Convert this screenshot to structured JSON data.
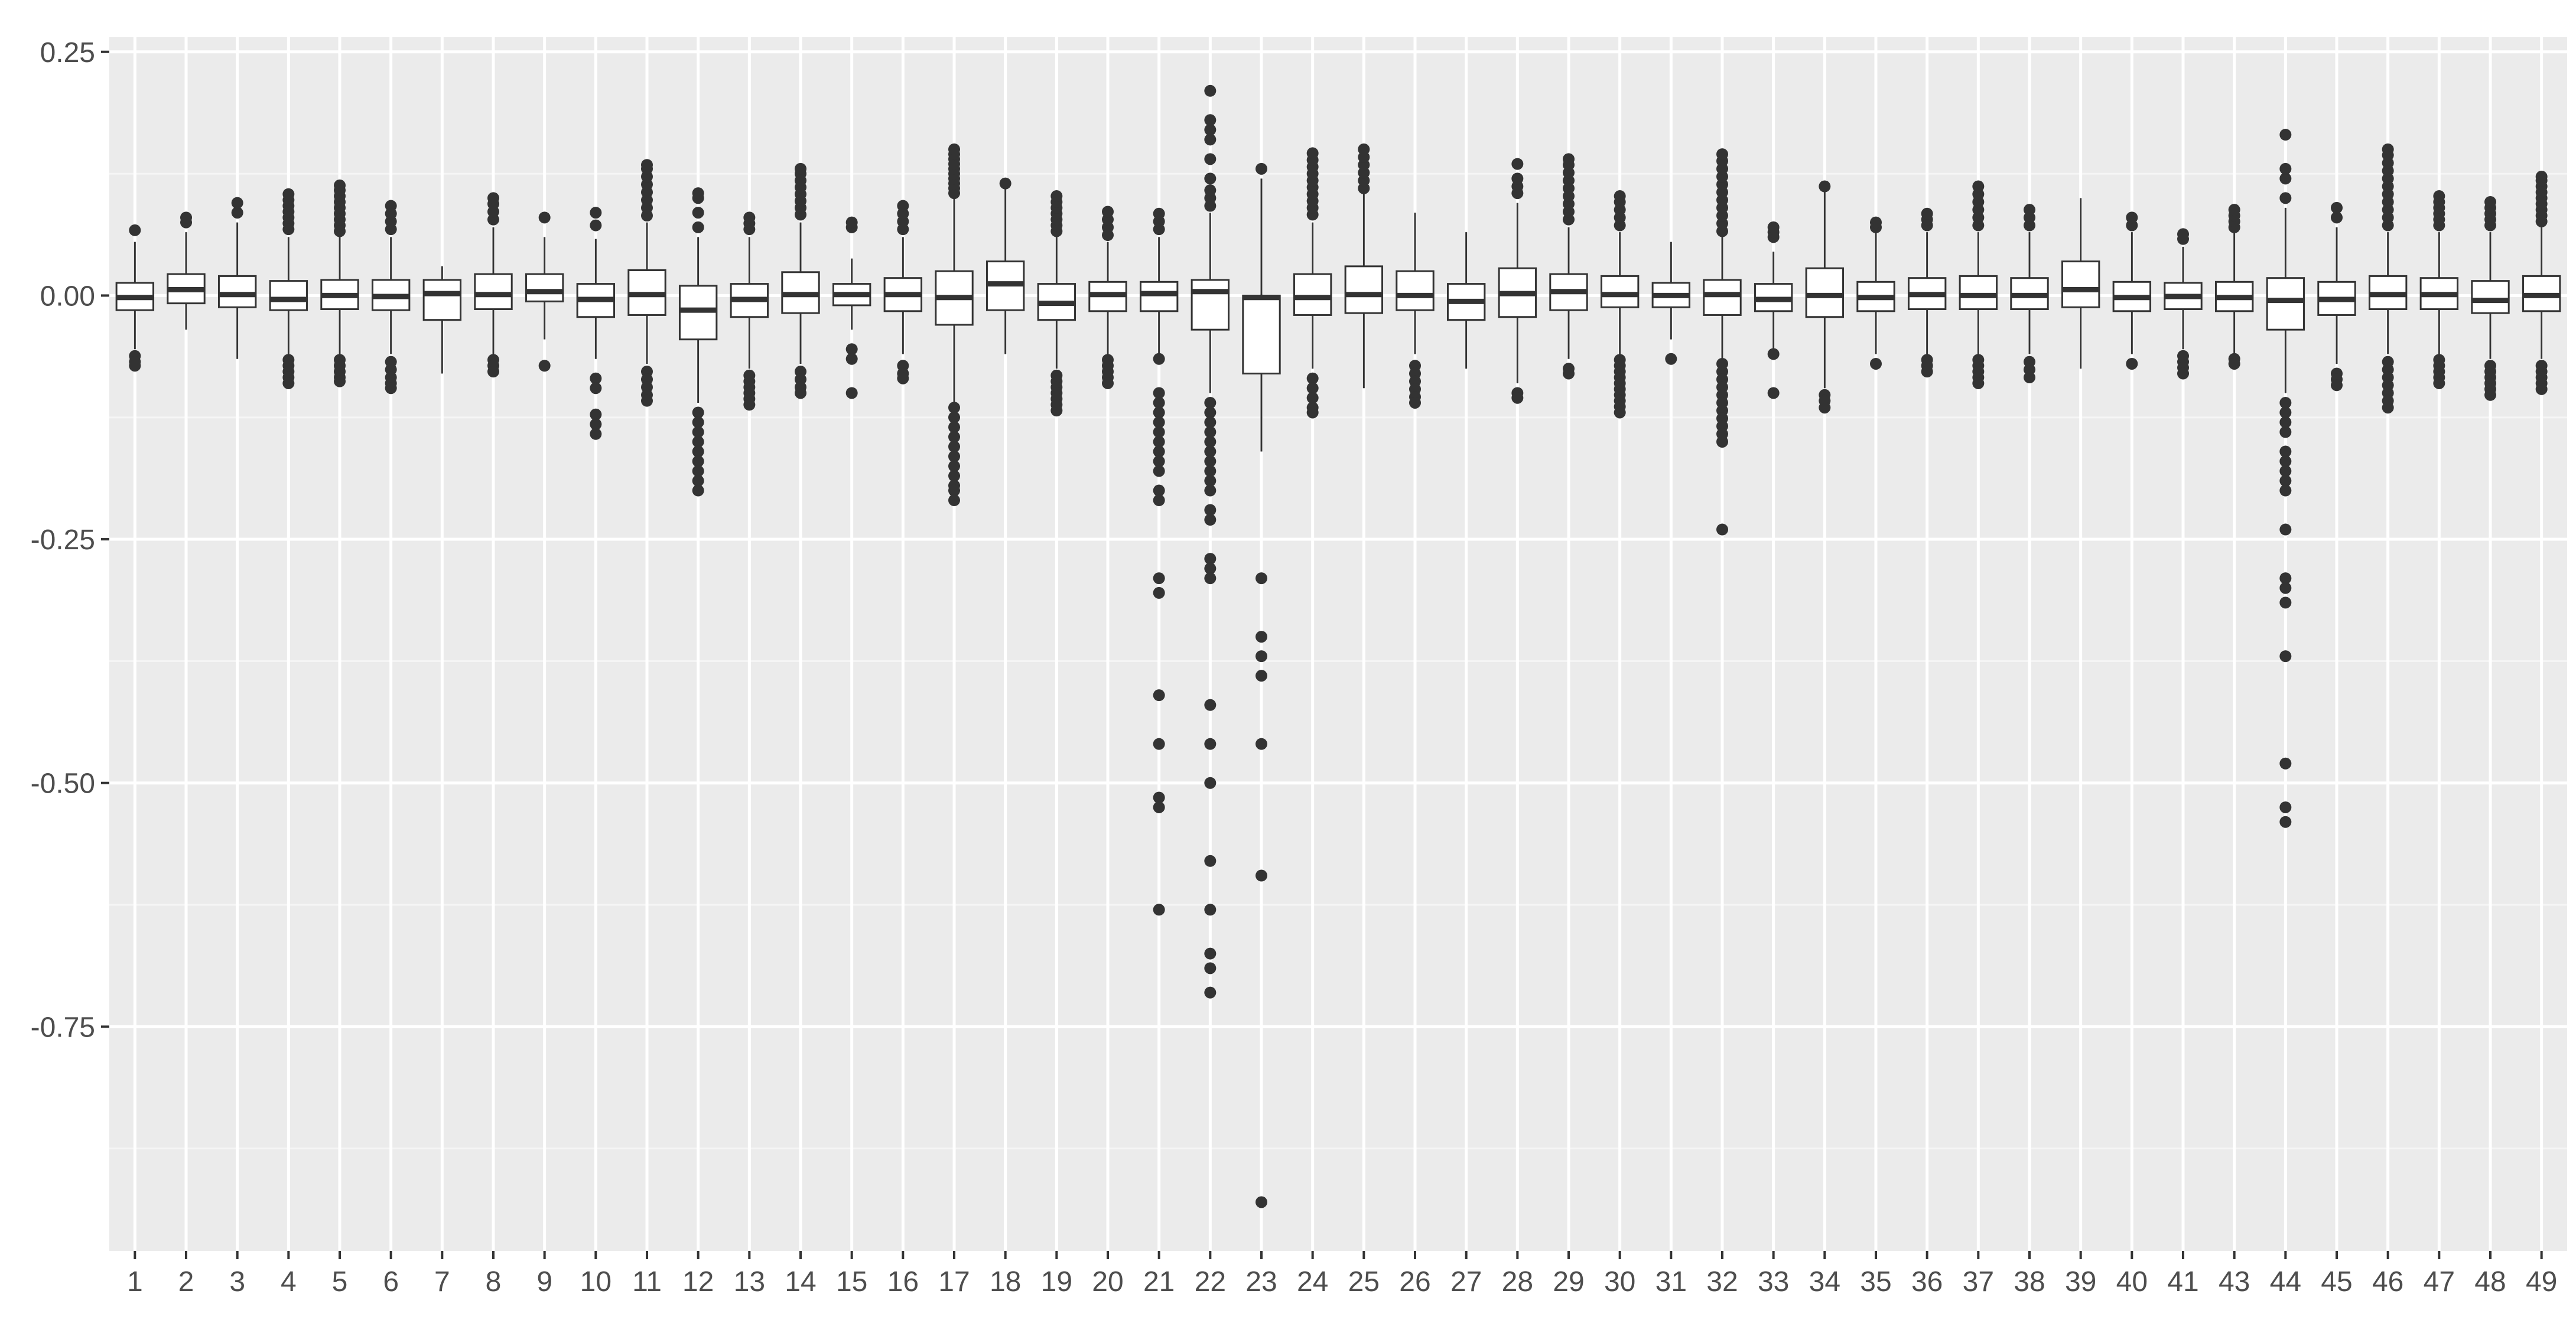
{
  "chart_data": {
    "type": "boxplot",
    "title": "",
    "xlabel": "",
    "ylabel": "",
    "ylim": [
      -0.98,
      0.265
    ],
    "grid": true,
    "legend": "none",
    "colors": {
      "panel": "#ebebeb",
      "grid_major": "#ffffff",
      "grid_minor": "#f5f5f5",
      "box_fill": "#ffffff",
      "box_line": "#333333",
      "outlier": "#333333",
      "tick_text": "#4d4d4d"
    },
    "y_ticks": [
      {
        "value": 0.25,
        "label": "0.25"
      },
      {
        "value": 0.0,
        "label": "0.00"
      },
      {
        "value": -0.25,
        "label": "-0.25"
      },
      {
        "value": -0.5,
        "label": "-0.50"
      },
      {
        "value": -0.75,
        "label": "-0.75"
      }
    ],
    "categories": [
      "1",
      "2",
      "3",
      "4",
      "5",
      "6",
      "7",
      "8",
      "9",
      "10",
      "11",
      "12",
      "13",
      "14",
      "15",
      "16",
      "17",
      "18",
      "19",
      "20",
      "21",
      "22",
      "23",
      "24",
      "25",
      "26",
      "27",
      "28",
      "29",
      "30",
      "31",
      "32",
      "33",
      "34",
      "35",
      "36",
      "37",
      "38",
      "39",
      "40",
      "41",
      "43",
      "44",
      "45",
      "46",
      "47",
      "48",
      "49"
    ],
    "boxes": [
      {
        "q1": -0.015,
        "median": -0.002,
        "q3": 0.013,
        "whisker_low": -0.055,
        "whisker_high": 0.055,
        "outliers": [
          0.067,
          -0.062,
          -0.068,
          -0.072
        ]
      },
      {
        "q1": -0.008,
        "median": 0.006,
        "q3": 0.022,
        "whisker_low": -0.035,
        "whisker_high": 0.065,
        "outliers": [
          0.075,
          0.08
        ]
      },
      {
        "q1": -0.012,
        "median": 0.001,
        "q3": 0.02,
        "whisker_low": -0.065,
        "whisker_high": 0.075,
        "outliers": [
          0.085,
          0.095
        ]
      },
      {
        "q1": -0.015,
        "median": -0.004,
        "q3": 0.015,
        "whisker_low": -0.06,
        "whisker_high": 0.06,
        "outliers": [
          0.068,
          0.074,
          0.08,
          0.086,
          0.092,
          0.098,
          0.104,
          -0.066,
          -0.072,
          -0.078,
          -0.084,
          -0.09
        ]
      },
      {
        "q1": -0.014,
        "median": 0.0,
        "q3": 0.016,
        "whisker_low": -0.06,
        "whisker_high": 0.06,
        "outliers": [
          0.066,
          0.072,
          0.078,
          0.084,
          0.09,
          0.096,
          0.102,
          0.108,
          0.113,
          -0.066,
          -0.072,
          -0.078,
          -0.084,
          -0.088
        ]
      },
      {
        "q1": -0.015,
        "median": -0.001,
        "q3": 0.016,
        "whisker_low": -0.06,
        "whisker_high": 0.06,
        "outliers": [
          0.068,
          0.076,
          0.084,
          0.092,
          -0.068,
          -0.076,
          -0.084,
          -0.09,
          -0.095
        ]
      },
      {
        "q1": -0.025,
        "median": 0.002,
        "q3": 0.016,
        "whisker_low": -0.08,
        "whisker_high": 0.03,
        "outliers": []
      },
      {
        "q1": -0.014,
        "median": 0.001,
        "q3": 0.022,
        "whisker_low": -0.06,
        "whisker_high": 0.07,
        "outliers": [
          0.078,
          0.086,
          0.094,
          0.1,
          -0.066,
          -0.072,
          -0.078
        ]
      },
      {
        "q1": -0.006,
        "median": 0.004,
        "q3": 0.022,
        "whisker_low": -0.045,
        "whisker_high": 0.06,
        "outliers": [
          0.08,
          -0.072
        ]
      },
      {
        "q1": -0.022,
        "median": -0.004,
        "q3": 0.012,
        "whisker_low": -0.065,
        "whisker_high": 0.058,
        "outliers": [
          0.072,
          0.085,
          -0.085,
          -0.095,
          -0.122,
          -0.132,
          -0.142
        ]
      },
      {
        "q1": -0.02,
        "median": 0.001,
        "q3": 0.026,
        "whisker_low": -0.07,
        "whisker_high": 0.075,
        "outliers": [
          0.082,
          0.09,
          0.098,
          0.106,
          0.114,
          0.122,
          0.13,
          0.134,
          -0.078,
          -0.086,
          -0.094,
          -0.102,
          -0.108
        ]
      },
      {
        "q1": -0.045,
        "median": -0.015,
        "q3": 0.01,
        "whisker_low": -0.11,
        "whisker_high": 0.06,
        "outliers": [
          0.07,
          0.085,
          0.1,
          0.105,
          -0.12,
          -0.13,
          -0.14,
          -0.15,
          -0.16,
          -0.17,
          -0.18,
          -0.19,
          -0.2
        ]
      },
      {
        "q1": -0.022,
        "median": -0.004,
        "q3": 0.012,
        "whisker_low": -0.075,
        "whisker_high": 0.06,
        "outliers": [
          0.068,
          0.074,
          0.08,
          -0.082,
          -0.088,
          -0.094,
          -0.1,
          -0.106,
          -0.112
        ]
      },
      {
        "q1": -0.018,
        "median": 0.001,
        "q3": 0.024,
        "whisker_low": -0.07,
        "whisker_high": 0.075,
        "outliers": [
          0.083,
          0.09,
          0.097,
          0.104,
          0.111,
          0.118,
          0.125,
          0.13,
          -0.078,
          -0.086,
          -0.094,
          -0.1
        ]
      },
      {
        "q1": -0.01,
        "median": 0.001,
        "q3": 0.012,
        "whisker_low": -0.035,
        "whisker_high": 0.038,
        "outliers": [
          0.07,
          0.075,
          -0.055,
          -0.065,
          -0.1
        ]
      },
      {
        "q1": -0.016,
        "median": 0.001,
        "q3": 0.018,
        "whisker_low": -0.06,
        "whisker_high": 0.06,
        "outliers": [
          0.068,
          0.076,
          0.084,
          0.092,
          -0.072,
          -0.08,
          -0.085
        ]
      },
      {
        "q1": -0.03,
        "median": -0.002,
        "q3": 0.025,
        "whisker_low": -0.11,
        "whisker_high": 0.1,
        "outliers": [
          0.105,
          0.11,
          0.115,
          0.12,
          0.125,
          0.13,
          0.135,
          0.14,
          0.145,
          0.15,
          -0.115,
          -0.125,
          -0.135,
          -0.145,
          -0.155,
          -0.165,
          -0.175,
          -0.185,
          -0.195,
          -0.2,
          -0.21
        ]
      },
      {
        "q1": -0.015,
        "median": 0.012,
        "q3": 0.035,
        "whisker_low": -0.06,
        "whisker_high": 0.11,
        "outliers": [
          0.115
        ]
      },
      {
        "q1": -0.025,
        "median": -0.008,
        "q3": 0.012,
        "whisker_low": -0.075,
        "whisker_high": 0.06,
        "outliers": [
          0.066,
          0.072,
          0.078,
          0.084,
          0.09,
          0.096,
          0.102,
          -0.082,
          -0.088,
          -0.094,
          -0.1,
          -0.106,
          -0.112,
          -0.118
        ]
      },
      {
        "q1": -0.016,
        "median": 0.001,
        "q3": 0.014,
        "whisker_low": -0.06,
        "whisker_high": 0.055,
        "outliers": [
          0.062,
          0.07,
          0.078,
          0.086,
          -0.066,
          -0.072,
          -0.078,
          -0.084,
          -0.09
        ]
      },
      {
        "q1": -0.016,
        "median": 0.002,
        "q3": 0.014,
        "whisker_low": -0.06,
        "whisker_high": 0.06,
        "outliers": [
          0.068,
          0.076,
          0.084,
          -0.065,
          -0.1,
          -0.11,
          -0.12,
          -0.13,
          -0.14,
          -0.15,
          -0.16,
          -0.17,
          -0.18,
          -0.2,
          -0.21,
          -0.29,
          -0.305,
          -0.41,
          -0.46,
          -0.515,
          -0.525,
          -0.63
        ]
      },
      {
        "q1": -0.035,
        "median": 0.004,
        "q3": 0.016,
        "whisker_low": -0.1,
        "whisker_high": 0.085,
        "outliers": [
          0.092,
          0.1,
          0.108,
          0.12,
          0.14,
          0.16,
          0.17,
          0.18,
          0.21,
          -0.11,
          -0.12,
          -0.13,
          -0.14,
          -0.15,
          -0.16,
          -0.17,
          -0.18,
          -0.19,
          -0.2,
          -0.22,
          -0.23,
          -0.27,
          -0.28,
          -0.29,
          -0.42,
          -0.46,
          -0.5,
          -0.58,
          -0.63,
          -0.675,
          -0.69,
          -0.715
        ]
      },
      {
        "q1": -0.08,
        "median": -0.002,
        "q3": 0.0,
        "whisker_low": -0.16,
        "whisker_high": 0.12,
        "outliers": [
          0.13,
          -0.29,
          -0.35,
          -0.37,
          -0.39,
          -0.46,
          -0.595,
          -0.93
        ]
      },
      {
        "q1": -0.02,
        "median": -0.002,
        "q3": 0.022,
        "whisker_low": -0.075,
        "whisker_high": 0.075,
        "outliers": [
          0.083,
          0.09,
          0.097,
          0.104,
          0.111,
          0.118,
          0.125,
          0.132,
          0.139,
          0.146,
          -0.085,
          -0.095,
          -0.105,
          -0.115,
          -0.12
        ]
      },
      {
        "q1": -0.018,
        "median": 0.001,
        "q3": 0.03,
        "whisker_low": -0.095,
        "whisker_high": 0.105,
        "outliers": [
          0.11,
          0.118,
          0.126,
          0.134,
          0.142,
          0.15
        ]
      },
      {
        "q1": -0.015,
        "median": 0.0,
        "q3": 0.025,
        "whisker_low": -0.06,
        "whisker_high": 0.085,
        "outliers": [
          -0.072,
          -0.08,
          -0.088,
          -0.096,
          -0.104,
          -0.11
        ]
      },
      {
        "q1": -0.025,
        "median": -0.006,
        "q3": 0.012,
        "whisker_low": -0.075,
        "whisker_high": 0.065,
        "outliers": []
      },
      {
        "q1": -0.022,
        "median": 0.002,
        "q3": 0.028,
        "whisker_low": -0.09,
        "whisker_high": 0.095,
        "outliers": [
          0.105,
          0.112,
          0.12,
          0.135,
          -0.1,
          -0.105
        ]
      },
      {
        "q1": -0.015,
        "median": 0.004,
        "q3": 0.022,
        "whisker_low": -0.065,
        "whisker_high": 0.07,
        "outliers": [
          0.078,
          0.086,
          0.094,
          0.102,
          0.11,
          0.118,
          0.126,
          0.134,
          0.14,
          -0.075,
          -0.08
        ]
      },
      {
        "q1": -0.012,
        "median": 0.001,
        "q3": 0.02,
        "whisker_low": -0.06,
        "whisker_high": 0.065,
        "outliers": [
          0.072,
          0.08,
          0.088,
          0.096,
          0.102,
          -0.066,
          -0.072,
          -0.078,
          -0.084,
          -0.09,
          -0.096,
          -0.102,
          -0.108,
          -0.114,
          -0.12
        ]
      },
      {
        "q1": -0.012,
        "median": 0.0,
        "q3": 0.013,
        "whisker_low": -0.045,
        "whisker_high": 0.055,
        "outliers": [
          -0.065
        ]
      },
      {
        "q1": -0.02,
        "median": 0.001,
        "q3": 0.016,
        "whisker_low": -0.065,
        "whisker_high": 0.06,
        "outliers": [
          0.066,
          0.074,
          0.082,
          0.09,
          0.098,
          0.106,
          0.114,
          0.122,
          0.13,
          0.138,
          0.145,
          -0.07,
          -0.078,
          -0.086,
          -0.094,
          -0.102,
          -0.11,
          -0.118,
          -0.126,
          -0.134,
          -0.142,
          -0.15,
          -0.24
        ]
      },
      {
        "q1": -0.016,
        "median": -0.004,
        "q3": 0.012,
        "whisker_low": -0.055,
        "whisker_high": 0.045,
        "outliers": [
          0.06,
          0.065,
          0.07,
          -0.06,
          -0.1
        ]
      },
      {
        "q1": -0.022,
        "median": 0.0,
        "q3": 0.028,
        "whisker_low": -0.095,
        "whisker_high": 0.11,
        "outliers": [
          0.112,
          -0.102,
          -0.108,
          -0.115
        ]
      },
      {
        "q1": -0.016,
        "median": -0.002,
        "q3": 0.014,
        "whisker_low": -0.06,
        "whisker_high": 0.065,
        "outliers": [
          0.07,
          0.075,
          -0.07
        ]
      },
      {
        "q1": -0.014,
        "median": 0.001,
        "q3": 0.018,
        "whisker_low": -0.06,
        "whisker_high": 0.065,
        "outliers": [
          0.072,
          0.078,
          0.084,
          -0.066,
          -0.072,
          -0.078
        ]
      },
      {
        "q1": -0.014,
        "median": 0.0,
        "q3": 0.02,
        "whisker_low": -0.06,
        "whisker_high": 0.065,
        "outliers": [
          0.072,
          0.08,
          0.088,
          0.096,
          0.104,
          0.112,
          -0.066,
          -0.072,
          -0.078,
          -0.084,
          -0.09
        ]
      },
      {
        "q1": -0.014,
        "median": 0.0,
        "q3": 0.018,
        "whisker_low": -0.06,
        "whisker_high": 0.065,
        "outliers": [
          0.072,
          0.08,
          0.088,
          -0.068,
          -0.076,
          -0.084
        ]
      },
      {
        "q1": -0.012,
        "median": 0.006,
        "q3": 0.035,
        "whisker_low": -0.075,
        "whisker_high": 0.1,
        "outliers": []
      },
      {
        "q1": -0.016,
        "median": -0.002,
        "q3": 0.014,
        "whisker_low": -0.06,
        "whisker_high": 0.065,
        "outliers": [
          0.072,
          0.08,
          -0.07
        ]
      },
      {
        "q1": -0.014,
        "median": -0.001,
        "q3": 0.013,
        "whisker_low": -0.055,
        "whisker_high": 0.05,
        "outliers": [
          0.058,
          0.063,
          -0.062,
          -0.068,
          -0.074,
          -0.08
        ]
      },
      {
        "q1": -0.016,
        "median": -0.002,
        "q3": 0.014,
        "whisker_low": -0.06,
        "whisker_high": 0.065,
        "outliers": [
          0.07,
          0.076,
          0.082,
          0.088,
          -0.065,
          -0.07
        ]
      },
      {
        "q1": -0.035,
        "median": -0.005,
        "q3": 0.018,
        "whisker_low": -0.1,
        "whisker_high": 0.09,
        "outliers": [
          0.1,
          0.12,
          0.13,
          0.165,
          -0.11,
          -0.12,
          -0.13,
          -0.14,
          -0.16,
          -0.17,
          -0.18,
          -0.19,
          -0.2,
          -0.24,
          -0.29,
          -0.3,
          -0.315,
          -0.37,
          -0.48,
          -0.525,
          -0.54
        ]
      },
      {
        "q1": -0.02,
        "median": -0.004,
        "q3": 0.014,
        "whisker_low": -0.07,
        "whisker_high": 0.07,
        "outliers": [
          0.08,
          0.09,
          -0.08,
          -0.086,
          -0.092
        ]
      },
      {
        "q1": -0.014,
        "median": 0.001,
        "q3": 0.02,
        "whisker_low": -0.06,
        "whisker_high": 0.065,
        "outliers": [
          0.072,
          0.08,
          0.088,
          0.096,
          0.104,
          0.112,
          0.12,
          0.128,
          0.136,
          0.144,
          0.15,
          -0.068,
          -0.076,
          -0.084,
          -0.092,
          -0.1,
          -0.108,
          -0.115
        ]
      },
      {
        "q1": -0.014,
        "median": 0.001,
        "q3": 0.018,
        "whisker_low": -0.06,
        "whisker_high": 0.065,
        "outliers": [
          0.072,
          0.078,
          0.084,
          0.09,
          0.096,
          0.102,
          -0.066,
          -0.072,
          -0.078,
          -0.084,
          -0.09
        ]
      },
      {
        "q1": -0.018,
        "median": -0.005,
        "q3": 0.015,
        "whisker_low": -0.065,
        "whisker_high": 0.065,
        "outliers": [
          0.072,
          0.078,
          0.084,
          0.09,
          0.096,
          -0.072,
          -0.078,
          -0.084,
          -0.09,
          -0.096,
          -0.102
        ]
      },
      {
        "q1": -0.016,
        "median": 0.0,
        "q3": 0.02,
        "whisker_low": -0.065,
        "whisker_high": 0.07,
        "outliers": [
          0.076,
          0.082,
          0.088,
          0.094,
          0.1,
          0.106,
          0.112,
          0.118,
          0.122,
          -0.072,
          -0.078,
          -0.084,
          -0.09,
          -0.096
        ]
      }
    ]
  }
}
